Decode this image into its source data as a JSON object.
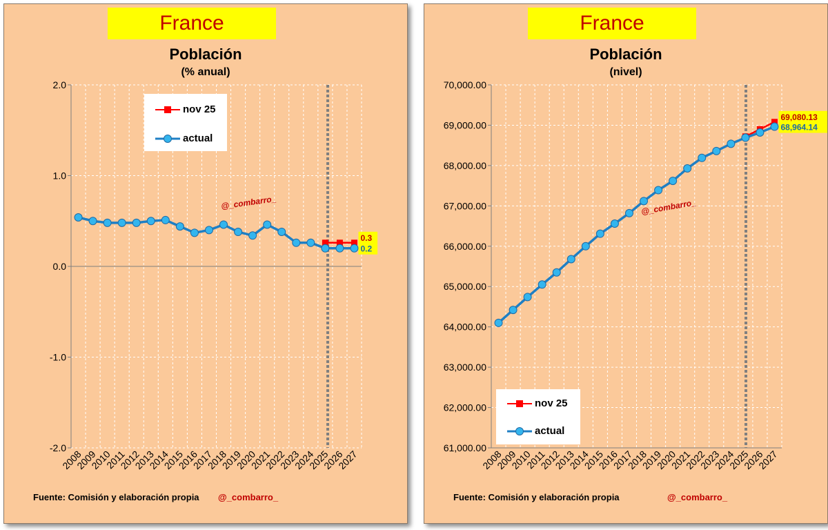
{
  "panels": [
    {
      "country": "France",
      "title": "Población",
      "subtitle": "(% anual)",
      "source": "Fuente: Comisión y elaboración propia",
      "handle": "@_combarro_",
      "legend": [
        {
          "label": "nov 25",
          "color": "#ff0000",
          "marker": "square"
        },
        {
          "label": "actual",
          "color": "#1f7fc4",
          "marker": "circle",
          "fill": "#33b5ee"
        }
      ]
    },
    {
      "country": "France",
      "title": "Población",
      "subtitle": "(nivel)",
      "source": "Fuente: Comisión y elaboración propia",
      "handle": "@_combarro_",
      "legend": [
        {
          "label": "nov 25",
          "color": "#ff0000",
          "marker": "square"
        },
        {
          "label": "actual",
          "color": "#1f7fc4",
          "marker": "circle",
          "fill": "#33b5ee"
        }
      ]
    }
  ],
  "chart_data": [
    {
      "type": "line",
      "title": "Población",
      "subtitle": "(% anual)",
      "categories": [
        "2008",
        "2009",
        "2010",
        "2011",
        "2012",
        "2013",
        "2014",
        "2015",
        "2016",
        "2017",
        "2018",
        "2019",
        "2020",
        "2021",
        "2022",
        "2023",
        "2024",
        "2025",
        "2026",
        "2027"
      ],
      "ylim": [
        -2.0,
        2.0
      ],
      "yticks": [
        2.0,
        1.0,
        0.0,
        -1.0,
        -2.0
      ],
      "ytick_labels": [
        "2.0",
        "1.0",
        "0.0",
        "-1.0",
        "-2.0"
      ],
      "grid": true,
      "forecast_marker_after": "2025",
      "watermark": "@_combarro_",
      "series": [
        {
          "name": "nov 25",
          "color": "#ff0000",
          "marker": "square",
          "values": [
            null,
            null,
            null,
            null,
            null,
            null,
            null,
            null,
            null,
            null,
            null,
            null,
            null,
            null,
            null,
            null,
            null,
            0.26,
            0.26,
            0.26
          ]
        },
        {
          "name": "actual",
          "color": "#1f7fc4",
          "marker": "circle",
          "values": [
            0.54,
            0.5,
            0.48,
            0.48,
            0.48,
            0.5,
            0.51,
            0.44,
            0.37,
            0.4,
            0.46,
            0.38,
            0.34,
            0.46,
            0.38,
            0.26,
            0.26,
            0.2,
            0.2,
            0.2
          ]
        }
      ],
      "end_labels": [
        {
          "series": "nov 25",
          "text": "0.3"
        },
        {
          "series": "actual",
          "text": "0.2"
        }
      ]
    },
    {
      "type": "line",
      "title": "Población",
      "subtitle": "(nivel)",
      "categories": [
        "2008",
        "2009",
        "2010",
        "2011",
        "2012",
        "2013",
        "2014",
        "2015",
        "2016",
        "2017",
        "2018",
        "2019",
        "2020",
        "2021",
        "2022",
        "2023",
        "2024",
        "2025",
        "2026",
        "2027"
      ],
      "ylim": [
        61000,
        70000
      ],
      "yticks": [
        70000,
        69000,
        68000,
        67000,
        66000,
        65000,
        64000,
        63000,
        62000,
        61000
      ],
      "ytick_labels": [
        "70,000.00",
        "69,000.00",
        "68,000.00",
        "67,000.00",
        "66,000.00",
        "65,000.00",
        "64,000.00",
        "63,000.00",
        "62,000.00",
        "61,000.00"
      ],
      "grid": true,
      "forecast_marker_after": "2025",
      "watermark": "@_combarro_",
      "series": [
        {
          "name": "nov 25",
          "color": "#ff0000",
          "marker": "square",
          "values": [
            null,
            null,
            null,
            null,
            null,
            null,
            null,
            null,
            null,
            null,
            null,
            null,
            null,
            null,
            null,
            null,
            null,
            68720,
            68900,
            69080
          ]
        },
        {
          "name": "actual",
          "color": "#1f7fc4",
          "marker": "circle",
          "values": [
            64100,
            64420,
            64740,
            65050,
            65350,
            65680,
            66000,
            66310,
            66560,
            66820,
            67120,
            67390,
            67620,
            67930,
            68190,
            68360,
            68540,
            68690,
            68820,
            68964.14
          ]
        }
      ],
      "end_labels": [
        {
          "series": "nov 25",
          "text": "69,080.13"
        },
        {
          "series": "actual",
          "text": "68,964.14"
        }
      ]
    }
  ]
}
